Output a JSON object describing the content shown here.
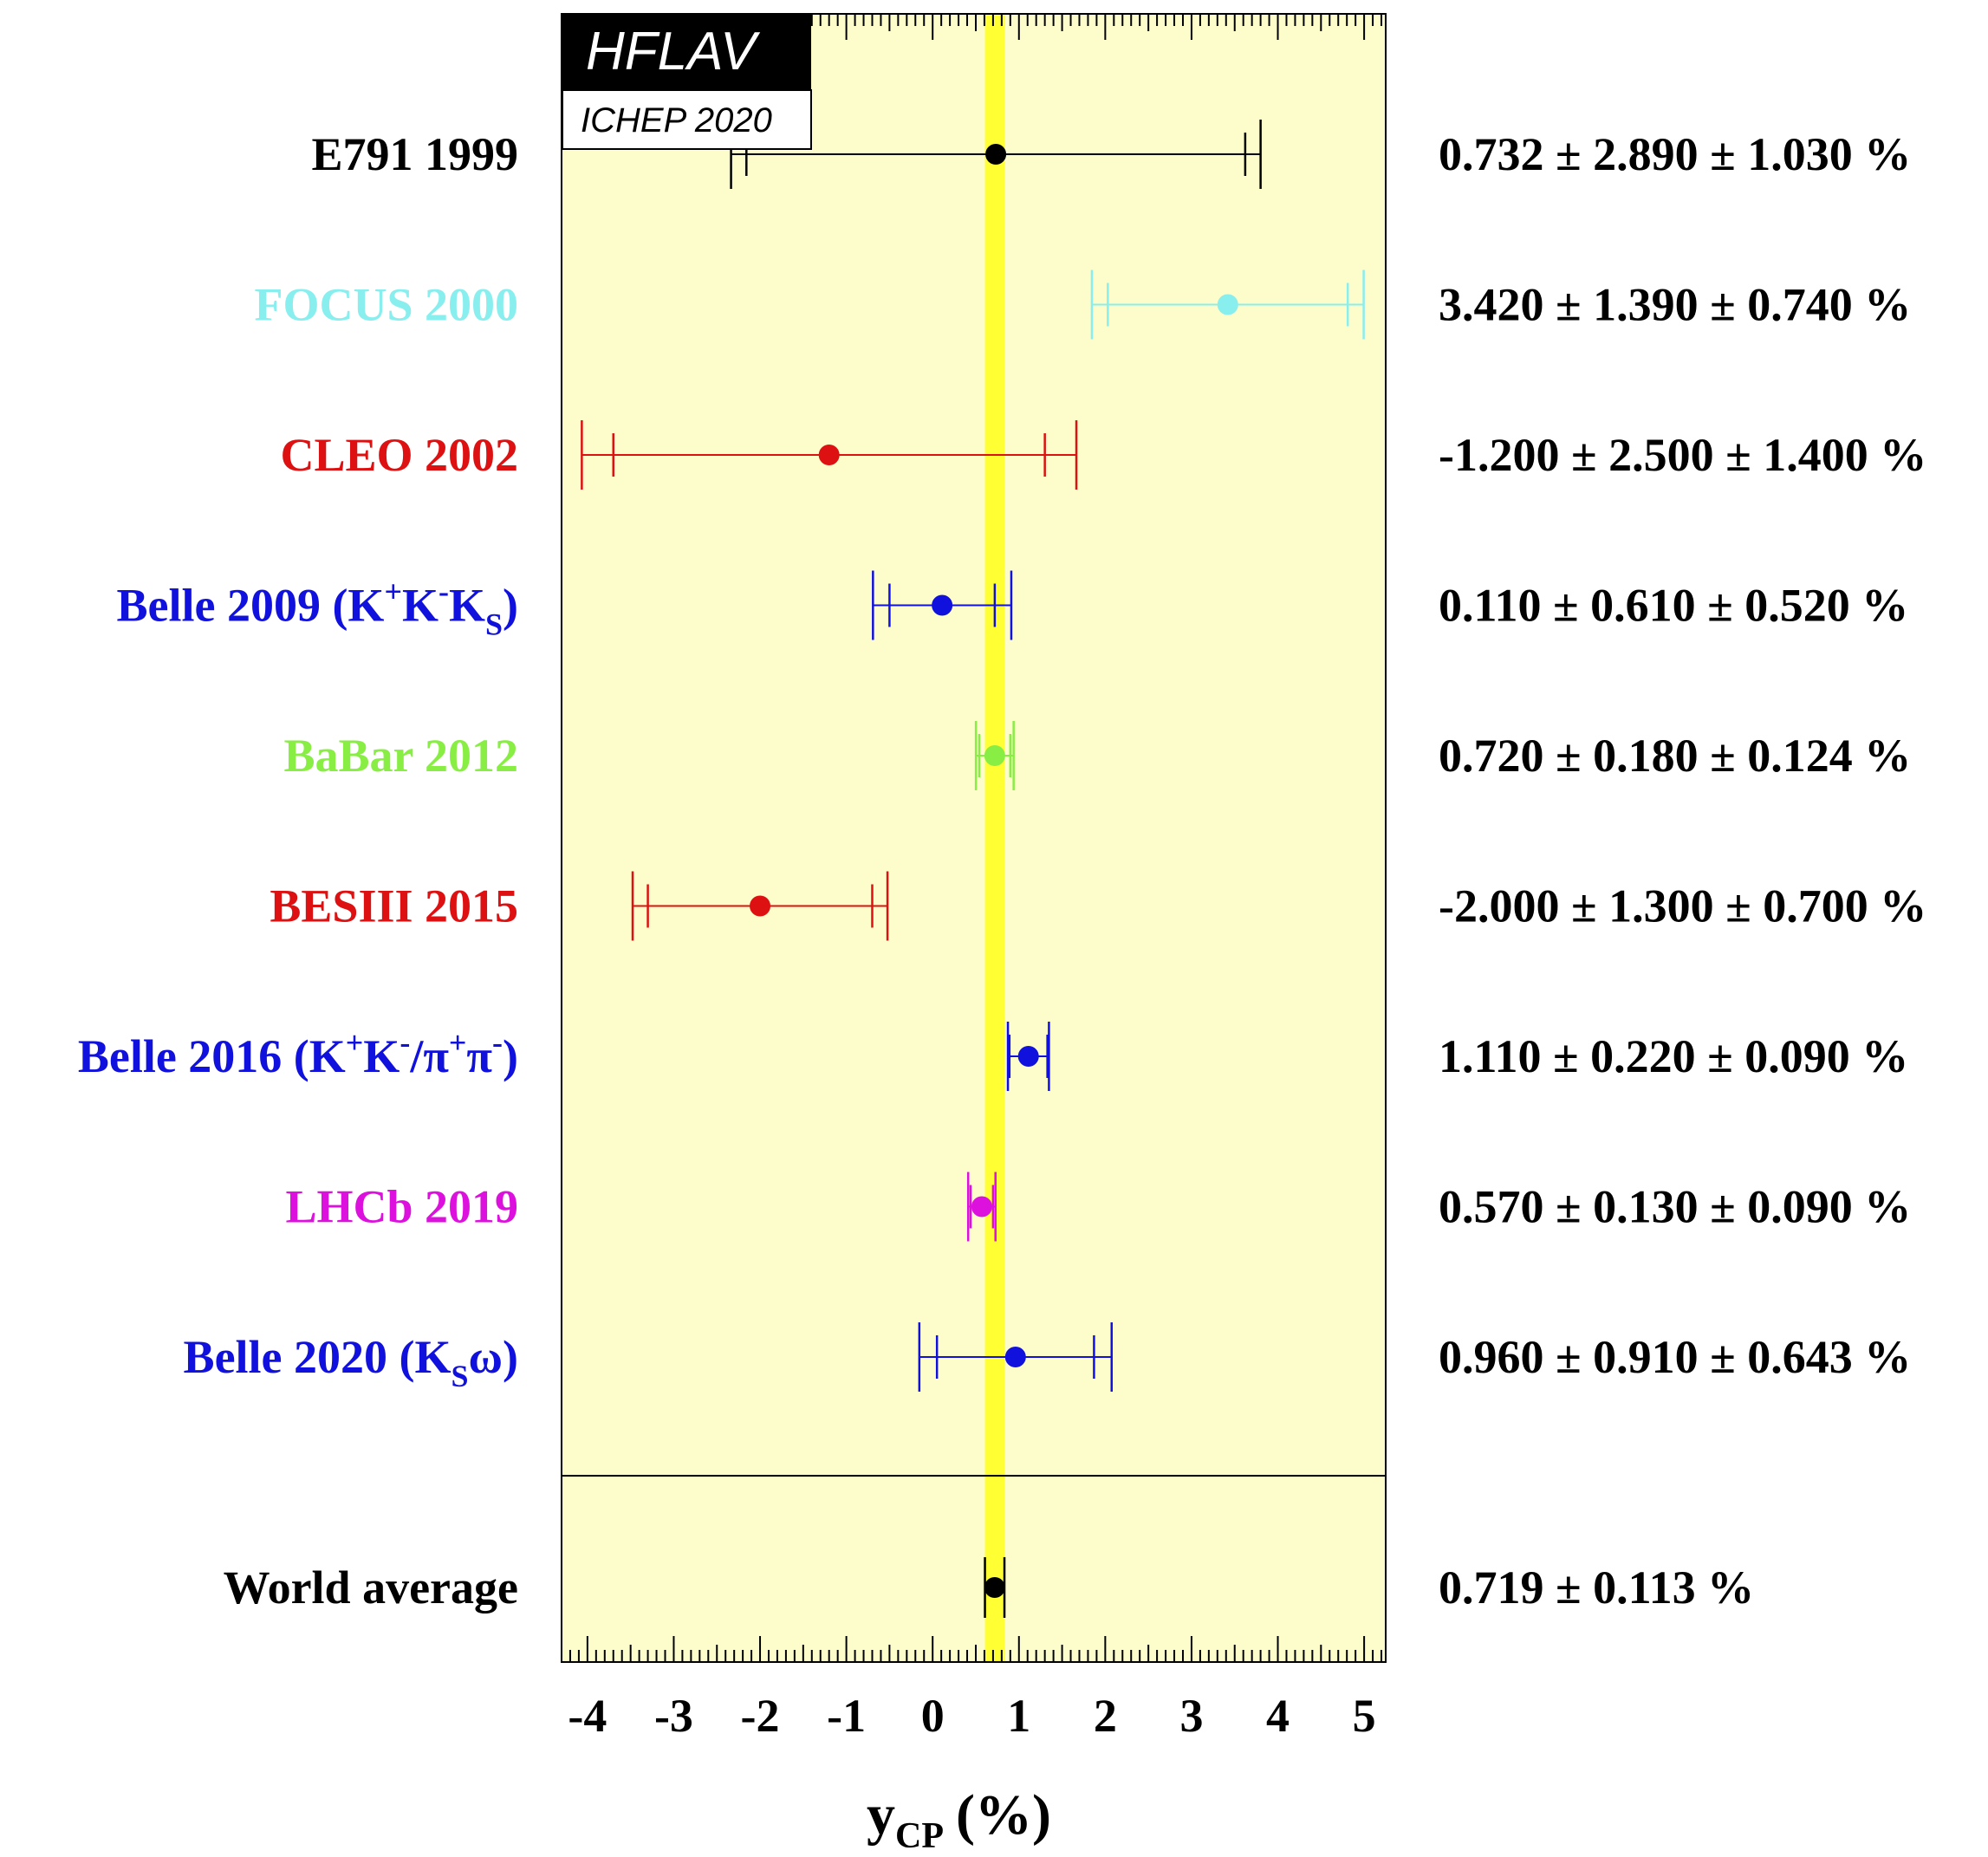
{
  "badge": {
    "title": "HFLAV",
    "subtitle": "ICHEP 2020"
  },
  "chart_data": {
    "type": "scatter",
    "xlabel_main": "y",
    "xlabel_sub": "CP",
    "xlabel_unit": "(%)",
    "xlim": [
      -4.3,
      5.25
    ],
    "xticks": [
      -4,
      -3,
      -2,
      -1,
      0,
      1,
      2,
      3,
      4,
      5
    ],
    "xtick_labels": [
      "-4",
      "-3",
      "-2",
      "-1",
      "0",
      "1",
      "2",
      "3",
      "4",
      "5"
    ],
    "band": {
      "center": 0.719,
      "error": 0.113,
      "color": "#ffff33"
    },
    "background_color": "#fdfdcc",
    "measurements": [
      {
        "label": "E791 1999",
        "value": 0.732,
        "stat": 2.89,
        "syst": 1.03,
        "color": "#000000",
        "value_text": "0.732 ± 2.890 ± 1.030 %"
      },
      {
        "label": "FOCUS 2000",
        "value": 3.42,
        "stat": 1.39,
        "syst": 0.74,
        "color": "#88eeee",
        "value_text": "3.420 ± 1.390 ± 0.740 %"
      },
      {
        "label": "CLEO 2002",
        "value": -1.2,
        "stat": 2.5,
        "syst": 1.4,
        "color": "#dd1111",
        "value_text": "-1.200 ± 2.500 ± 1.400 %"
      },
      {
        "label_parts": [
          "Belle 2009 (K",
          "+",
          "K",
          "-",
          "K",
          "S",
          ")"
        ],
        "label_styles": [
          "n",
          "sup",
          "n",
          "sup",
          "n",
          "sub",
          "n"
        ],
        "value": 0.11,
        "stat": 0.61,
        "syst": 0.52,
        "color": "#1111dd",
        "value_text": "0.110 ± 0.610 ± 0.520 %"
      },
      {
        "label": "BaBar 2012",
        "value": 0.72,
        "stat": 0.18,
        "syst": 0.124,
        "color": "#88ee44",
        "value_text": "0.720 ± 0.180 ± 0.124 %"
      },
      {
        "label": "BESIII 2015",
        "value": -2.0,
        "stat": 1.3,
        "syst": 0.7,
        "color": "#dd1111",
        "value_text": "-2.000 ± 1.300 ± 0.700 %"
      },
      {
        "label_parts": [
          "Belle 2016 (K",
          "+",
          "K",
          "-",
          "/π",
          "+",
          "π",
          "-",
          ")"
        ],
        "label_styles": [
          "n",
          "sup",
          "n",
          "sup",
          "n",
          "sup",
          "n",
          "sup",
          "n"
        ],
        "value": 1.11,
        "stat": 0.22,
        "syst": 0.09,
        "color": "#1111dd",
        "value_text": "1.110 ± 0.220 ± 0.090 %"
      },
      {
        "label": "LHCb 2019",
        "value": 0.57,
        "stat": 0.13,
        "syst": 0.09,
        "color": "#dd11dd",
        "value_text": "0.570 ± 0.130 ± 0.090 %"
      },
      {
        "label_parts": [
          "Belle 2020 (K",
          "S",
          "ω)"
        ],
        "label_styles": [
          "n",
          "sub",
          "n"
        ],
        "value": 0.96,
        "stat": 0.91,
        "syst": 0.643,
        "color": "#1111dd",
        "value_text": "0.960 ± 0.910 ± 0.643 %"
      }
    ],
    "average": {
      "label": "World average",
      "value": 0.719,
      "error": 0.113,
      "color": "#000000",
      "value_text": "0.719 ± 0.113 %"
    }
  }
}
